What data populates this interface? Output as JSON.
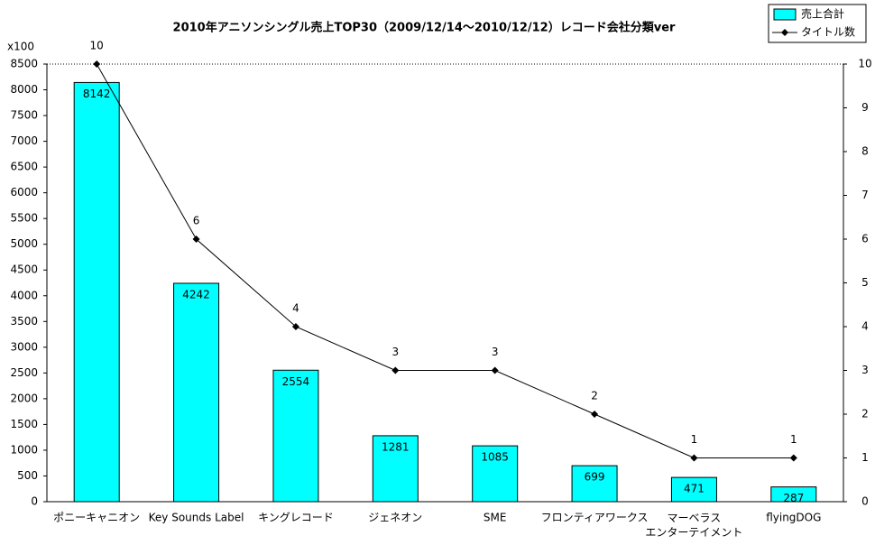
{
  "chart_data": {
    "type": "combo",
    "title": "2010年アニソンシングル売上TOP30（2009/12/14～2010/12/12）レコード会社分類ver",
    "y_unit_label": "x100",
    "categories": [
      "ポニーキャニオン",
      "Key Sounds Label",
      "キングレコード",
      "ジェネオン",
      "SME",
      "フロンティアワークス",
      "マーベラス\nエンターテイメント",
      "flyingDOG"
    ],
    "series": [
      {
        "name": "売上合計",
        "type": "bar",
        "color": "#00ffff",
        "values": [
          8142,
          4242,
          2554,
          1281,
          1085,
          699,
          471,
          287
        ]
      },
      {
        "name": "タイトル数",
        "type": "line",
        "color": "#000000",
        "axis": "y2",
        "values": [
          10,
          6,
          4,
          3,
          3,
          2,
          1,
          1
        ]
      }
    ],
    "ylim": [
      0,
      8500
    ],
    "yticks": [
      0,
      500,
      1000,
      1500,
      2000,
      2500,
      3000,
      3500,
      4000,
      4500,
      5000,
      5500,
      6000,
      6500,
      7000,
      7500,
      8000,
      8500
    ],
    "y2lim": [
      0,
      10
    ],
    "y2ticks": [
      0,
      1,
      2,
      3,
      4,
      5,
      6,
      7,
      8,
      9,
      10
    ],
    "legend": "top-right"
  }
}
